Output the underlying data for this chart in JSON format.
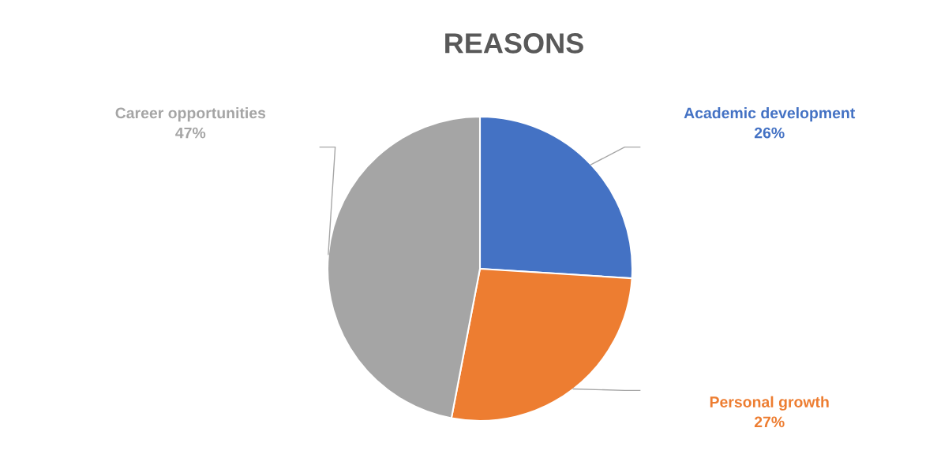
{
  "chart_data": {
    "type": "pie",
    "title": "REASONS",
    "categories": [
      "Academic development",
      "Personal growth",
      "Career opportunities"
    ],
    "values": [
      26,
      27,
      47
    ],
    "colors": [
      "#4472c4",
      "#ed7d31",
      "#a5a5a5"
    ],
    "value_labels": [
      "26%",
      "27%",
      "47%"
    ],
    "legend": false
  }
}
